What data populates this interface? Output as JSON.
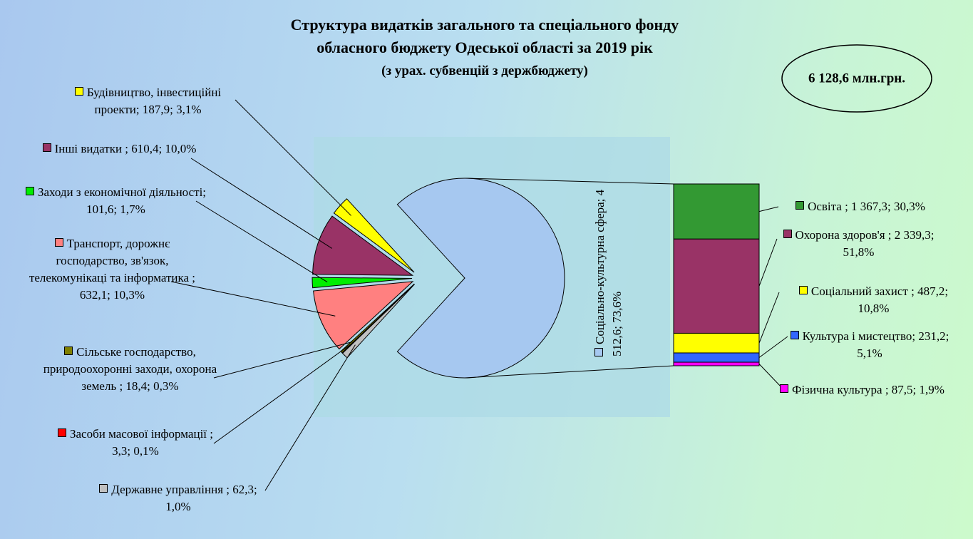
{
  "chart_data": {
    "type": "pie",
    "title": [
      "Структура видатків загального та спеціального фонду",
      "обласного бюджету Одеської області за 2019 рік"
    ],
    "subtitle": "(з урах. субвенцій з держбюджету)",
    "annotation": "6 128,6 млн.грн.",
    "pie": {
      "labels": [
        "Будівництво, інвестиційні проекти; 187,9; 3,1%",
        "Інші видатки ; 610,4; 10,0%",
        "Заходи з економічної діяльності; 101,6; 1,7%",
        "Транспорт, дорожнє господарство, зв'язок, телекомунікаці та інформатика ; 632,1; 10,3%",
        "Сільське господарство, природоохоронні заходи, охорона земель  ; 18,4; 0,3%",
        "Засоби масової інформації ; 3,3; 0,1%",
        "Державне управління ; 62,3; 1,0%",
        "Соціально-культурна сфера; 4 512,6; 73,6%"
      ],
      "values": [
        187.9,
        610.4,
        101.6,
        632.1,
        18.4,
        3.3,
        62.3,
        4512.6
      ],
      "percents": [
        3.1,
        10.0,
        1.7,
        10.3,
        0.3,
        0.1,
        1.0,
        73.6
      ],
      "colors": [
        "#ffff00",
        "#993366",
        "#00ee00",
        "#ff8080",
        "#808000",
        "#ff0000",
        "#c0c0c0",
        "#a6c8f0"
      ]
    },
    "bar": {
      "labels": [
        "Освіта ; 1 367,3; 30,3%",
        "Охорона здоров'я ; 2 339,3; 51,8%",
        "Соціальний захист ; 487,2; 10,8%",
        "Культура і мистецтво; 231,2; 5,1%",
        "Фізична культура ; 87,5; 1,9%"
      ],
      "values": [
        1367.3,
        2339.3,
        487.2,
        231.2,
        87.5
      ],
      "percents": [
        30.3,
        51.8,
        10.8,
        5.1,
        1.9
      ],
      "colors": [
        "#339933",
        "#993366",
        "#ffff00",
        "#3366ff",
        "#ff00ff"
      ]
    }
  }
}
